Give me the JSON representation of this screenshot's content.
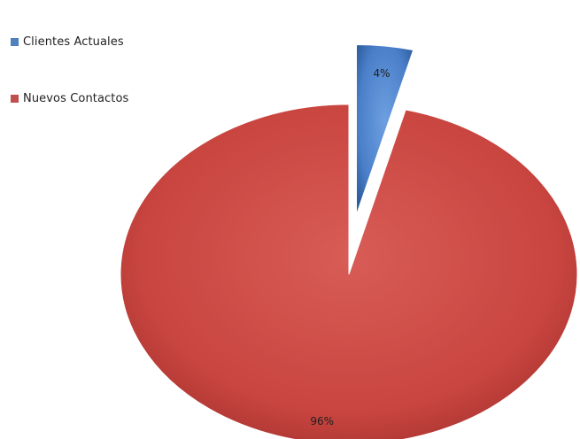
{
  "chart_data": {
    "type": "pie",
    "title": "",
    "exploded": true,
    "slices": [
      {
        "label": "Clientes Actuales",
        "value": 4,
        "display": "4%",
        "color": "#4f81bd"
      },
      {
        "label": "Nuevos Contactos",
        "value": 96,
        "display": "96%",
        "color": "#c0504d"
      }
    ],
    "legend_position": "top-left"
  }
}
